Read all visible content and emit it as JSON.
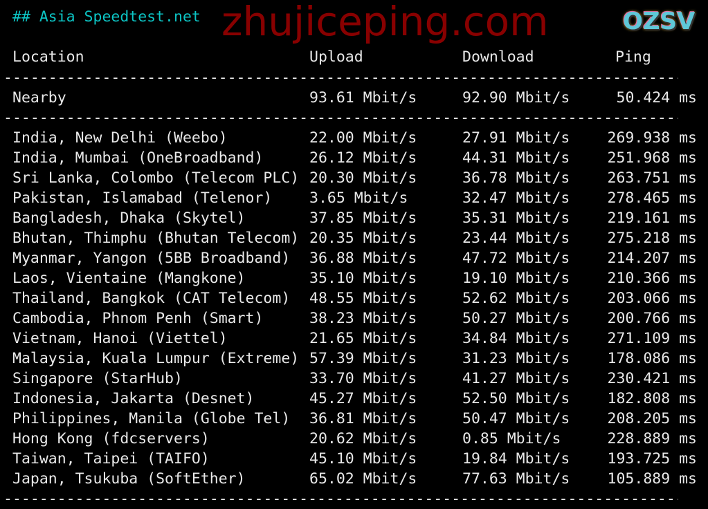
{
  "title": "## Asia Speedtest.net",
  "headers": {
    "location": "Location",
    "upload": "Upload",
    "download": "Download",
    "ping": "Ping"
  },
  "divider": "-----------------------------------------------------------------------------",
  "nearby": {
    "location": "Nearby",
    "upload": "93.61 Mbit/s",
    "download": "92.90 Mbit/s",
    "ping": "50.424 ms"
  },
  "rows": [
    {
      "location": "India, New Delhi (Weebo)",
      "upload": "22.00 Mbit/s",
      "download": "27.91 Mbit/s",
      "ping": "269.938 ms"
    },
    {
      "location": "India, Mumbai (OneBroadband)",
      "upload": "26.12 Mbit/s",
      "download": "44.31 Mbit/s",
      "ping": "251.968 ms"
    },
    {
      "location": "Sri Lanka, Colombo (Telecom PLC)",
      "upload": "20.30 Mbit/s",
      "download": "36.78 Mbit/s",
      "ping": "263.751 ms"
    },
    {
      "location": "Pakistan, Islamabad (Telenor)",
      "upload": "3.65 Mbit/s",
      "download": "32.47 Mbit/s",
      "ping": "278.465 ms"
    },
    {
      "location": "Bangladesh, Dhaka (Skytel)",
      "upload": "37.85 Mbit/s",
      "download": "35.31 Mbit/s",
      "ping": "219.161 ms"
    },
    {
      "location": "Bhutan, Thimphu (Bhutan Telecom)",
      "upload": "20.35 Mbit/s",
      "download": "23.44 Mbit/s",
      "ping": "275.218 ms"
    },
    {
      "location": "Myanmar, Yangon (5BB Broadband)",
      "upload": "36.88 Mbit/s",
      "download": "47.72 Mbit/s",
      "ping": "214.207 ms"
    },
    {
      "location": "Laos, Vientaine (Mangkone)",
      "upload": "35.10 Mbit/s",
      "download": "19.10 Mbit/s",
      "ping": "210.366 ms"
    },
    {
      "location": "Thailand, Bangkok (CAT Telecom)",
      "upload": "48.55 Mbit/s",
      "download": "52.62 Mbit/s",
      "ping": "203.066 ms"
    },
    {
      "location": "Cambodia, Phnom Penh (Smart)",
      "upload": "38.23 Mbit/s",
      "download": "50.27 Mbit/s",
      "ping": "200.766 ms"
    },
    {
      "location": "Vietnam, Hanoi (Viettel)",
      "upload": "21.65 Mbit/s",
      "download": "34.84 Mbit/s",
      "ping": "271.109 ms"
    },
    {
      "location": "Malaysia, Kuala Lumpur (Extreme)",
      "upload": "57.39 Mbit/s",
      "download": "31.23 Mbit/s",
      "ping": "178.086 ms"
    },
    {
      "location": "Singapore (StarHub)",
      "upload": "33.70 Mbit/s",
      "download": "41.27 Mbit/s",
      "ping": "230.421 ms"
    },
    {
      "location": "Indonesia, Jakarta (Desnet)",
      "upload": "45.27 Mbit/s",
      "download": "52.50 Mbit/s",
      "ping": "182.808 ms"
    },
    {
      "location": "Philippines, Manila (Globe Tel)",
      "upload": "36.81 Mbit/s",
      "download": "50.47 Mbit/s",
      "ping": "208.205 ms"
    },
    {
      "location": "Hong Kong (fdcservers)",
      "upload": "20.62 Mbit/s",
      "download": "0.85 Mbit/s",
      "ping": "228.889 ms"
    },
    {
      "location": "Taiwan, Taipei (TAIFO)",
      "upload": "45.10 Mbit/s",
      "download": "19.84 Mbit/s",
      "ping": "193.725 ms"
    },
    {
      "location": "Japan, Tsukuba (SoftEther)",
      "upload": "65.02 Mbit/s",
      "download": "77.63 Mbit/s",
      "ping": "105.889 ms"
    }
  ],
  "watermark": "zhujiceping.com",
  "logo": "OZSV",
  "colors": {
    "background": "#000000",
    "text": "#e8e8e8",
    "title": "#0cc4c4",
    "watermark": "#a00000"
  }
}
